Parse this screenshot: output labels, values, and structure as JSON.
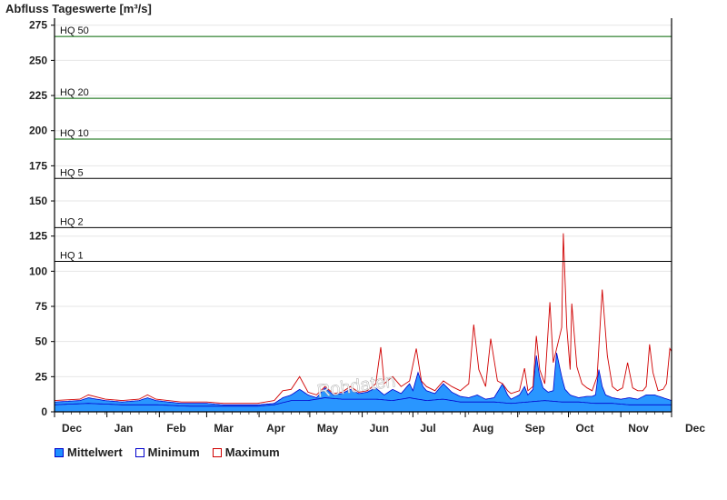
{
  "chart_data": {
    "type": "area",
    "title": "Abfluss Tageswerte [m³/s]",
    "xlabel": "",
    "ylabel": "",
    "ylim": [
      0,
      280
    ],
    "yticks": [
      0,
      25,
      50,
      75,
      100,
      125,
      150,
      175,
      200,
      225,
      250,
      275
    ],
    "x_ticks": [
      "Dec",
      "Jan",
      "Feb",
      "Mar",
      "Apr",
      "May",
      "Jun",
      "Jul",
      "Aug",
      "Sep",
      "Oct",
      "Nov",
      "Dec"
    ],
    "grid": true,
    "legend_position": "bottom-left",
    "watermark": "Rohdaten",
    "thresholds": [
      {
        "label": "HQ 1",
        "value": 107,
        "color": "#000000"
      },
      {
        "label": "HQ 2",
        "value": 131,
        "color": "#000000"
      },
      {
        "label": "HQ 5",
        "value": 166,
        "color": "#000000"
      },
      {
        "label": "HQ 10",
        "value": 194,
        "color": "#006400"
      },
      {
        "label": "HQ 20",
        "value": 223,
        "color": "#006400"
      },
      {
        "label": "HQ 50",
        "value": 267,
        "color": "#006400"
      }
    ],
    "x_unit": "day of hydrological year (0 = 1 Dec)",
    "series": [
      {
        "name": "Mittelwert",
        "color": "#1e90ff",
        "points": [
          [
            0,
            7
          ],
          [
            15,
            8
          ],
          [
            20,
            10
          ],
          [
            30,
            8
          ],
          [
            40,
            7
          ],
          [
            50,
            8
          ],
          [
            55,
            10
          ],
          [
            60,
            8
          ],
          [
            75,
            6
          ],
          [
            90,
            6
          ],
          [
            100,
            5
          ],
          [
            110,
            5
          ],
          [
            120,
            5
          ],
          [
            130,
            6
          ],
          [
            135,
            10
          ],
          [
            140,
            12
          ],
          [
            145,
            16
          ],
          [
            150,
            12
          ],
          [
            155,
            10
          ],
          [
            160,
            17
          ],
          [
            165,
            12
          ],
          [
            170,
            13
          ],
          [
            175,
            16
          ],
          [
            180,
            13
          ],
          [
            185,
            14
          ],
          [
            190,
            17
          ],
          [
            195,
            12
          ],
          [
            200,
            16
          ],
          [
            205,
            13
          ],
          [
            210,
            20
          ],
          [
            212,
            15
          ],
          [
            215,
            28
          ],
          [
            218,
            18
          ],
          [
            220,
            15
          ],
          [
            225,
            13
          ],
          [
            230,
            20
          ],
          [
            235,
            14
          ],
          [
            240,
            11
          ],
          [
            245,
            10
          ],
          [
            250,
            12
          ],
          [
            255,
            9
          ],
          [
            260,
            10
          ],
          [
            265,
            20
          ],
          [
            268,
            12
          ],
          [
            270,
            9
          ],
          [
            275,
            12
          ],
          [
            278,
            18
          ],
          [
            280,
            12
          ],
          [
            283,
            16
          ],
          [
            285,
            40
          ],
          [
            287,
            25
          ],
          [
            289,
            17
          ],
          [
            292,
            14
          ],
          [
            295,
            15
          ],
          [
            297,
            42
          ],
          [
            300,
            25
          ],
          [
            302,
            16
          ],
          [
            305,
            12
          ],
          [
            310,
            10
          ],
          [
            315,
            11
          ],
          [
            318,
            11
          ],
          [
            320,
            12
          ],
          [
            322,
            30
          ],
          [
            324,
            18
          ],
          [
            326,
            12
          ],
          [
            330,
            10
          ],
          [
            335,
            9
          ],
          [
            340,
            10
          ],
          [
            345,
            9
          ],
          [
            350,
            12
          ],
          [
            355,
            12
          ],
          [
            360,
            10
          ],
          [
            365,
            8
          ]
        ]
      },
      {
        "name": "Minimum",
        "color": "#0000cc",
        "points": [
          [
            0,
            5
          ],
          [
            20,
            6
          ],
          [
            40,
            5
          ],
          [
            60,
            5
          ],
          [
            80,
            4
          ],
          [
            100,
            4
          ],
          [
            120,
            4
          ],
          [
            130,
            5
          ],
          [
            140,
            8
          ],
          [
            150,
            8
          ],
          [
            160,
            10
          ],
          [
            170,
            9
          ],
          [
            180,
            9
          ],
          [
            190,
            9
          ],
          [
            200,
            8
          ],
          [
            210,
            10
          ],
          [
            220,
            8
          ],
          [
            230,
            9
          ],
          [
            240,
            7
          ],
          [
            250,
            7
          ],
          [
            260,
            7
          ],
          [
            270,
            6
          ],
          [
            280,
            7
          ],
          [
            290,
            8
          ],
          [
            300,
            7
          ],
          [
            310,
            7
          ],
          [
            320,
            6
          ],
          [
            330,
            6
          ],
          [
            340,
            5
          ],
          [
            350,
            5
          ],
          [
            360,
            5
          ],
          [
            365,
            5
          ]
        ]
      },
      {
        "name": "Maximum",
        "color": "#d00000",
        "points": [
          [
            0,
            8
          ],
          [
            15,
            9
          ],
          [
            20,
            12
          ],
          [
            30,
            9
          ],
          [
            40,
            8
          ],
          [
            50,
            9
          ],
          [
            55,
            12
          ],
          [
            60,
            9
          ],
          [
            75,
            7
          ],
          [
            90,
            7
          ],
          [
            100,
            6
          ],
          [
            110,
            6
          ],
          [
            120,
            6
          ],
          [
            130,
            8
          ],
          [
            135,
            15
          ],
          [
            140,
            16
          ],
          [
            145,
            25
          ],
          [
            150,
            14
          ],
          [
            155,
            12
          ],
          [
            160,
            18
          ],
          [
            165,
            13
          ],
          [
            170,
            14
          ],
          [
            175,
            18
          ],
          [
            180,
            14
          ],
          [
            185,
            15
          ],
          [
            190,
            20
          ],
          [
            193,
            46
          ],
          [
            195,
            20
          ],
          [
            200,
            25
          ],
          [
            205,
            18
          ],
          [
            210,
            22
          ],
          [
            214,
            45
          ],
          [
            217,
            22
          ],
          [
            220,
            18
          ],
          [
            225,
            15
          ],
          [
            230,
            22
          ],
          [
            235,
            18
          ],
          [
            240,
            15
          ],
          [
            245,
            20
          ],
          [
            248,
            62
          ],
          [
            251,
            30
          ],
          [
            255,
            18
          ],
          [
            258,
            52
          ],
          [
            262,
            22
          ],
          [
            265,
            20
          ],
          [
            268,
            15
          ],
          [
            270,
            13
          ],
          [
            275,
            15
          ],
          [
            278,
            31
          ],
          [
            280,
            15
          ],
          [
            283,
            18
          ],
          [
            285,
            54
          ],
          [
            287,
            30
          ],
          [
            290,
            20
          ],
          [
            293,
            78
          ],
          [
            295,
            35
          ],
          [
            298,
            50
          ],
          [
            300,
            60
          ],
          [
            301,
            127
          ],
          [
            303,
            60
          ],
          [
            305,
            30
          ],
          [
            306,
            77
          ],
          [
            309,
            32
          ],
          [
            312,
            20
          ],
          [
            315,
            17
          ],
          [
            318,
            15
          ],
          [
            321,
            25
          ],
          [
            324,
            87
          ],
          [
            327,
            40
          ],
          [
            330,
            18
          ],
          [
            333,
            15
          ],
          [
            336,
            17
          ],
          [
            339,
            35
          ],
          [
            342,
            17
          ],
          [
            345,
            15
          ],
          [
            348,
            15
          ],
          [
            350,
            18
          ],
          [
            352,
            48
          ],
          [
            354,
            28
          ],
          [
            357,
            15
          ],
          [
            360,
            16
          ],
          [
            362,
            20
          ],
          [
            364,
            45
          ],
          [
            365,
            43
          ]
        ]
      }
    ]
  },
  "legend": [
    {
      "label": "Mittelwert",
      "fill": "#1e90ff",
      "border": "#0000cc"
    },
    {
      "label": "Minimum",
      "fill": "#ffffff",
      "border": "#0000cc"
    },
    {
      "label": "Maximum",
      "fill": "#ffffff",
      "border": "#d00000"
    }
  ]
}
